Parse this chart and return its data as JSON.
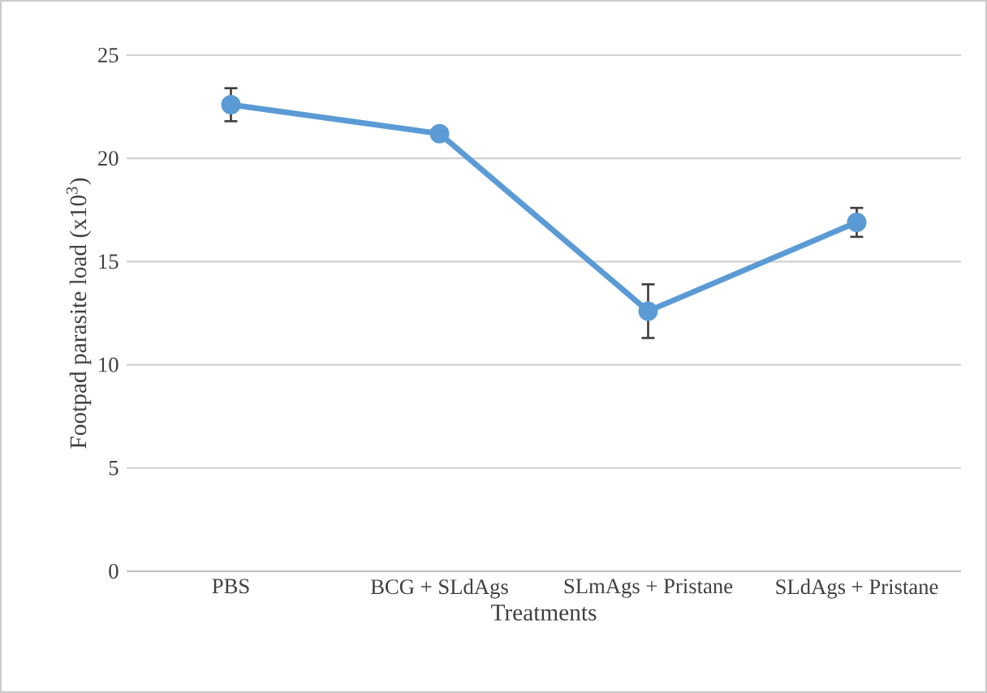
{
  "chart_data": {
    "type": "line",
    "ylabel": "Footpad parasite load (x10$^{3}$)",
    "xlabel": "Treatments",
    "categories": [
      "PBS",
      "BCG + SLdAgs",
      "SLmAgs + Pristane",
      "SLdAgs + Pristane"
    ],
    "values": [
      22.6,
      21.2,
      12.6,
      16.9
    ],
    "errors": [
      0.8,
      null,
      1.3,
      0.7
    ],
    "color": "#5b9bd5",
    "marker": "circle",
    "line_style": "solid",
    "ylim": [
      0,
      25
    ],
    "yticks": [
      0,
      5,
      10,
      15,
      20,
      25
    ],
    "grid": "y"
  }
}
